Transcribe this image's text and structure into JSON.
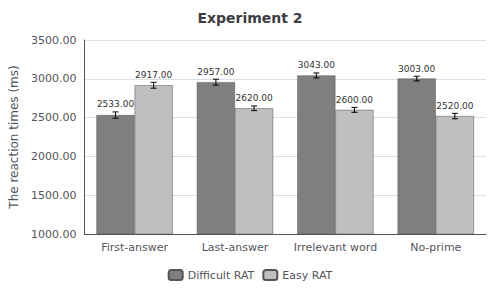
{
  "chart_data": {
    "type": "bar",
    "title": "Experiment 2",
    "ylabel": "The reaction times (ms)",
    "categories": [
      "First-answer",
      "Last-answer",
      "Irrelevant word",
      "No-prime"
    ],
    "series": [
      {
        "name": "Difficult RAT",
        "color": "#7f7f7f",
        "values": [
          2533.0,
          2957.0,
          3043.0,
          3003.0
        ],
        "errors": [
          40,
          38,
          32,
          30
        ],
        "value_labels": [
          "2533.00",
          "2957.00",
          "3043.00",
          "3003.00"
        ]
      },
      {
        "name": "Easy RAT",
        "color": "#bfbfbf",
        "values": [
          2917.0,
          2620.0,
          2600.0,
          2520.0
        ],
        "errors": [
          38,
          30,
          32,
          35
        ],
        "value_labels": [
          "2917.00",
          "2620.00",
          "2600.00",
          "2520.00"
        ]
      }
    ],
    "ylim": [
      1000,
      3500
    ],
    "yticks": [
      {
        "value": 1000,
        "label": "1000.00"
      },
      {
        "value": 1500,
        "label": "1500.00"
      },
      {
        "value": 2000,
        "label": "2000.00"
      },
      {
        "value": 2500,
        "label": "2500.00"
      },
      {
        "value": 3000,
        "label": "3000.00"
      },
      {
        "value": 3500,
        "label": "3500.00"
      }
    ],
    "grid": true,
    "legend": "bottom",
    "data_labels": true
  }
}
